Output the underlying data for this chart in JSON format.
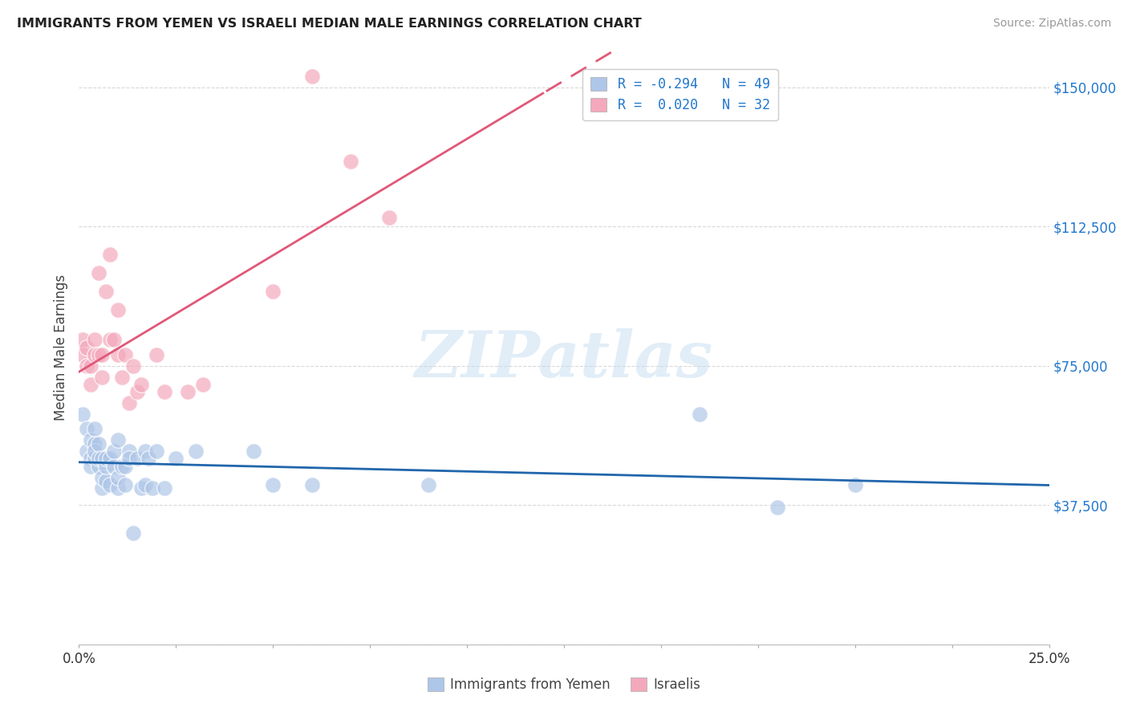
{
  "title": "IMMIGRANTS FROM YEMEN VS ISRAELI MEDIAN MALE EARNINGS CORRELATION CHART",
  "source": "Source: ZipAtlas.com",
  "ylabel": "Median Male Earnings",
  "yticks": [
    0,
    37500,
    75000,
    112500,
    150000
  ],
  "ytick_labels": [
    "",
    "$37,500",
    "$75,000",
    "$112,500",
    "$150,000"
  ],
  "xlim": [
    0.0,
    0.25
  ],
  "ylim": [
    0,
    160000
  ],
  "legend_label1": "Immigrants from Yemen",
  "legend_label2": "Israelis",
  "color_blue": "#aec6e8",
  "color_pink": "#f4a8bc",
  "color_blue_line": "#2166ac",
  "color_pink_line": "#e05878",
  "watermark": "ZIPatlas",
  "blue_scatter_x": [
    0.001,
    0.002,
    0.002,
    0.003,
    0.003,
    0.003,
    0.004,
    0.004,
    0.004,
    0.004,
    0.005,
    0.005,
    0.005,
    0.006,
    0.006,
    0.006,
    0.007,
    0.007,
    0.007,
    0.008,
    0.008,
    0.009,
    0.009,
    0.01,
    0.01,
    0.01,
    0.011,
    0.012,
    0.012,
    0.013,
    0.013,
    0.014,
    0.015,
    0.016,
    0.017,
    0.017,
    0.018,
    0.019,
    0.02,
    0.022,
    0.025,
    0.03,
    0.045,
    0.05,
    0.06,
    0.09,
    0.16,
    0.18,
    0.2
  ],
  "blue_scatter_y": [
    62000,
    58000,
    52000,
    55000,
    50000,
    48000,
    58000,
    54000,
    50000,
    52000,
    48000,
    50000,
    54000,
    42000,
    45000,
    50000,
    44000,
    48000,
    50000,
    43000,
    50000,
    48000,
    52000,
    42000,
    45000,
    55000,
    48000,
    43000,
    48000,
    52000,
    50000,
    30000,
    50000,
    42000,
    43000,
    52000,
    50000,
    42000,
    52000,
    42000,
    50000,
    52000,
    52000,
    43000,
    43000,
    43000,
    62000,
    37000,
    43000
  ],
  "pink_scatter_x": [
    0.001,
    0.001,
    0.002,
    0.002,
    0.003,
    0.003,
    0.004,
    0.004,
    0.005,
    0.005,
    0.006,
    0.006,
    0.007,
    0.008,
    0.008,
    0.009,
    0.01,
    0.01,
    0.011,
    0.012,
    0.013,
    0.014,
    0.015,
    0.016,
    0.02,
    0.022,
    0.028,
    0.032,
    0.05,
    0.06,
    0.07,
    0.08
  ],
  "pink_scatter_y": [
    82000,
    78000,
    80000,
    75000,
    75000,
    70000,
    82000,
    78000,
    100000,
    78000,
    78000,
    72000,
    95000,
    105000,
    82000,
    82000,
    90000,
    78000,
    72000,
    78000,
    65000,
    75000,
    68000,
    70000,
    78000,
    68000,
    68000,
    70000,
    95000,
    153000,
    130000,
    115000
  ],
  "background_color": "#ffffff",
  "grid_color": "#d8d8d8"
}
